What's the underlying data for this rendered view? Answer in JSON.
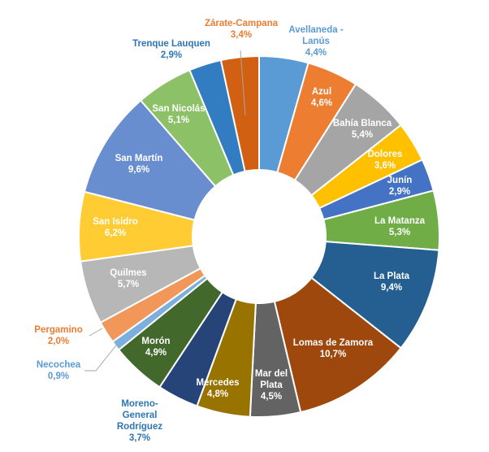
{
  "chart_data": {
    "type": "pie",
    "donut": true,
    "title": "",
    "unit": "%",
    "slices": [
      {
        "label": "Avellaneda - Lanús",
        "value": 4.4,
        "value_label": "4,4%",
        "color": "#5b9bd5",
        "label_color": "#5b9bd5"
      },
      {
        "label": "Azul",
        "value": 4.6,
        "value_label": "4,6%",
        "color": "#ed7d31",
        "label_color": "#ffffff"
      },
      {
        "label": "Bahía Blanca",
        "value": 5.4,
        "value_label": "5,4%",
        "color": "#a5a5a5",
        "label_color": "#ffffff"
      },
      {
        "label": "Dolores",
        "value": 3.6,
        "value_label": "3,6%",
        "color": "#ffc000",
        "label_color": "#ffffff"
      },
      {
        "label": "Junín",
        "value": 2.9,
        "value_label": "2,9%",
        "color": "#4472c4",
        "label_color": "#ffffff"
      },
      {
        "label": "La Matanza",
        "value": 5.3,
        "value_label": "5,3%",
        "color": "#70ad47",
        "label_color": "#ffffff"
      },
      {
        "label": "La Plata",
        "value": 9.4,
        "value_label": "9,4%",
        "color": "#255e91",
        "label_color": "#ffffff"
      },
      {
        "label": "Lomas de Zamora",
        "value": 10.7,
        "value_label": "10,7%",
        "color": "#9e480e",
        "label_color": "#ffffff"
      },
      {
        "label": "Mar del Plata",
        "value": 4.5,
        "value_label": "4,5%",
        "color": "#636363",
        "label_color": "#ffffff"
      },
      {
        "label": "Mercedes",
        "value": 4.8,
        "value_label": "4,8%",
        "color": "#997300",
        "label_color": "#ffffff"
      },
      {
        "label": "Moreno-General Rodríguez",
        "value": 3.7,
        "value_label": "3,7%",
        "color": "#264478",
        "label_color": "#2e75b6"
      },
      {
        "label": "Morón",
        "value": 4.9,
        "value_label": "4,9%",
        "color": "#43682b",
        "label_color": "#ffffff"
      },
      {
        "label": "Necochea",
        "value": 0.9,
        "value_label": "0,9%",
        "color": "#7cafdd",
        "label_color": "#5b9bd5"
      },
      {
        "label": "Pergamino",
        "value": 2.0,
        "value_label": "2,0%",
        "color": "#f1975a",
        "label_color": "#ed7d31"
      },
      {
        "label": "Quilmes",
        "value": 5.7,
        "value_label": "5,7%",
        "color": "#b7b7b7",
        "label_color": "#ffffff"
      },
      {
        "label": "San Isidro",
        "value": 6.2,
        "value_label": "6,2%",
        "color": "#ffcd33",
        "label_color": "#ffffff"
      },
      {
        "label": "San Martín",
        "value": 9.6,
        "value_label": "9,6%",
        "color": "#698ed0",
        "label_color": "#ffffff"
      },
      {
        "label": "San Nicolás",
        "value": 5.1,
        "value_label": "5,1%",
        "color": "#8cc168",
        "label_color": "#ffffff"
      },
      {
        "label": "Trenque Lauquen",
        "value": 2.9,
        "value_label": "2,9%",
        "color": "#327dc2",
        "label_color": "#2e75b6"
      },
      {
        "label": "Zárate-Campana",
        "value": 3.4,
        "value_label": "3,4%",
        "color": "#d26012",
        "label_color": "#ed7d31"
      }
    ]
  }
}
